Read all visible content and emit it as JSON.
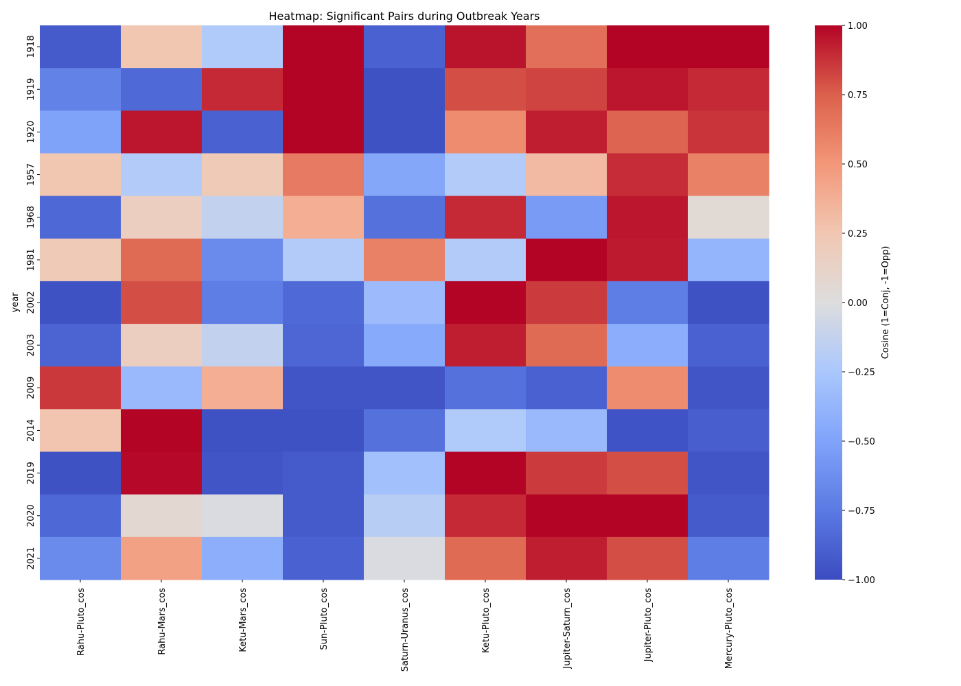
{
  "chart_data": {
    "type": "heatmap",
    "title": "Heatmap: Significant Pairs during Outbreak Years",
    "xlabel": "",
    "ylabel": "year",
    "colormap": "coolwarm",
    "vmin": -1.0,
    "vmax": 1.0,
    "colorbar": {
      "label": "Cosine (1=Conj, -1=Opp)",
      "ticks": [
        1.0,
        0.75,
        0.5,
        0.25,
        0.0,
        -0.25,
        -0.5,
        -0.75,
        -1.0
      ],
      "tick_labels": [
        "1.00",
        "0.75",
        "0.50",
        "0.25",
        "0.00",
        "−0.25",
        "−0.50",
        "−0.75",
        "−1.00"
      ]
    },
    "columns": [
      "Rahu-Pluto_cos",
      "Rahu-Mars_cos",
      "Ketu-Mars_cos",
      "Sun-Pluto_cos",
      "Saturn-Uranus_cos",
      "Ketu-Pluto_cos",
      "Jupiter-Saturn_cos",
      "Jupiter-Pluto_cos",
      "Mercury-Pluto_cos"
    ],
    "rows": [
      "1918",
      "1919",
      "1920",
      "1957",
      "1968",
      "1981",
      "2002",
      "2003",
      "2009",
      "2014",
      "2019",
      "2020",
      "2021"
    ],
    "values": [
      [
        -0.92,
        0.25,
        -0.22,
        1.0,
        -0.88,
        0.96,
        0.68,
        1.0,
        1.0
      ],
      [
        -0.7,
        -0.84,
        0.9,
        1.0,
        -0.97,
        0.8,
        0.83,
        0.95,
        0.9
      ],
      [
        -0.5,
        0.95,
        -0.88,
        1.0,
        -0.97,
        0.55,
        0.93,
        0.73,
        0.87
      ],
      [
        0.25,
        -0.21,
        0.22,
        0.63,
        -0.47,
        -0.21,
        0.32,
        0.89,
        0.6
      ],
      [
        -0.85,
        0.17,
        -0.13,
        0.38,
        -0.8,
        0.9,
        -0.55,
        0.95,
        0.05
      ],
      [
        0.22,
        0.7,
        -0.65,
        -0.21,
        0.6,
        -0.21,
        1.0,
        0.94,
        -0.38
      ],
      [
        -0.97,
        0.8,
        -0.73,
        -0.84,
        -0.33,
        1.0,
        0.85,
        -0.73,
        -0.97
      ],
      [
        -0.87,
        0.17,
        -0.13,
        -0.86,
        -0.45,
        0.93,
        0.7,
        -0.43,
        -0.88
      ],
      [
        0.86,
        -0.35,
        0.38,
        -0.95,
        -0.95,
        -0.8,
        -0.88,
        0.55,
        -0.95
      ],
      [
        0.26,
        1.0,
        -0.97,
        -0.97,
        -0.8,
        -0.22,
        -0.35,
        -0.96,
        -0.9
      ],
      [
        -0.97,
        0.99,
        -0.95,
        -0.92,
        -0.3,
        1.0,
        0.85,
        0.8,
        -0.95
      ],
      [
        -0.85,
        0.07,
        -0.02,
        -0.92,
        -0.18,
        0.9,
        1.0,
        1.0,
        -0.92
      ],
      [
        -0.65,
        0.45,
        -0.42,
        -0.88,
        -0.02,
        0.7,
        0.93,
        0.8,
        -0.73
      ]
    ]
  }
}
